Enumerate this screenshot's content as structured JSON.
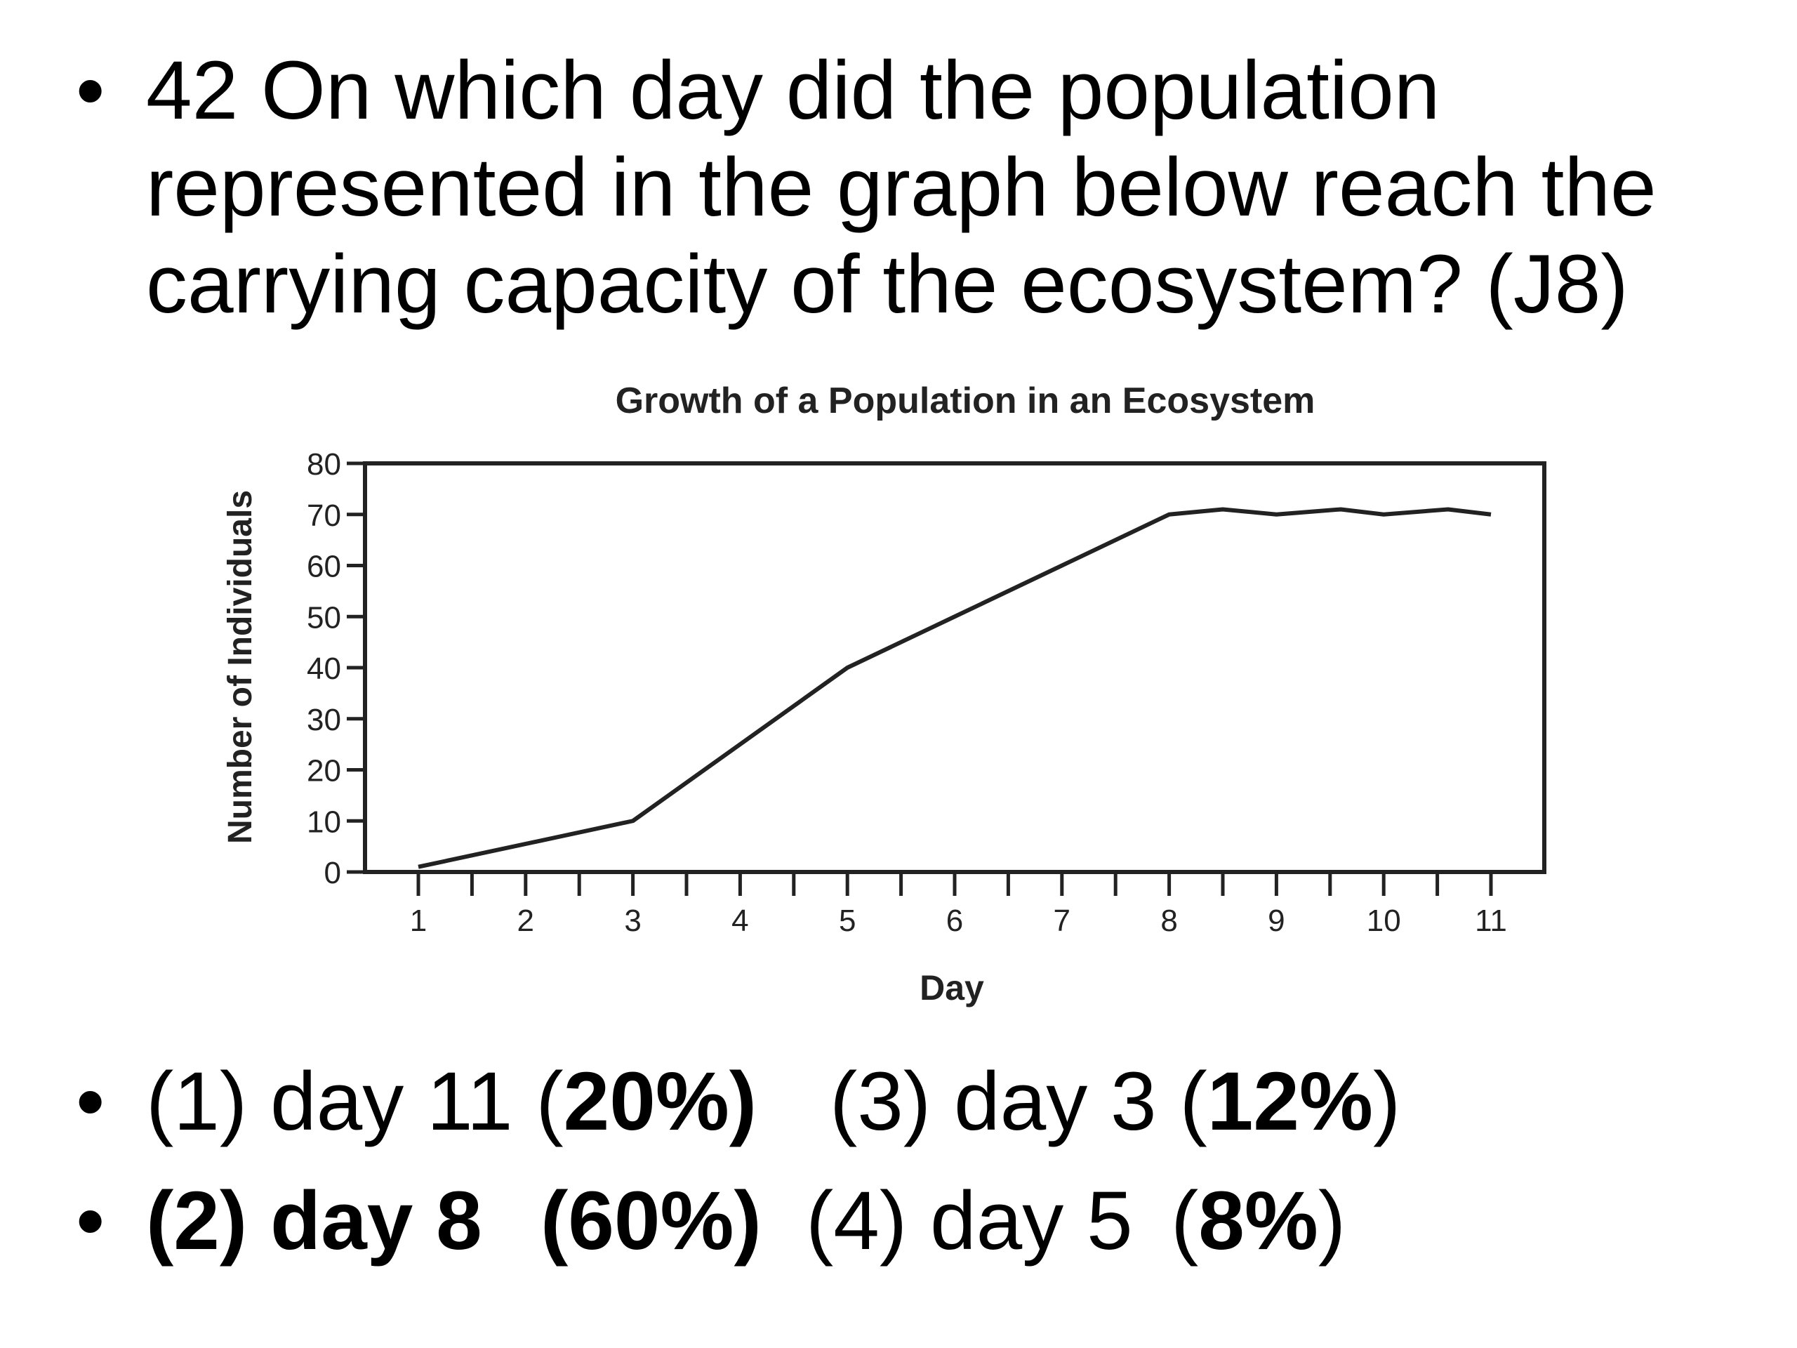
{
  "question": {
    "bullet": "•",
    "lines": [
      "42 On which day did the population",
      "represented in the graph below reach the",
      "carrying capacity of the ecosystem? (J8)"
    ]
  },
  "answers": {
    "row1": {
      "bullet": "•",
      "opt1_text": "(1) day 11 (",
      "opt1_pct": "20%",
      "opt1_close": ")",
      "opt3_text": "(3) day 3 (",
      "opt3_pct": "12%",
      "opt3_close": ")"
    },
    "row2": {
      "bullet": "•",
      "opt2_text": "(2) day 8",
      "opt2_pct_full": "(60%)",
      "opt4_text": "(4) day 5",
      "opt4_open": "(",
      "opt4_pct": "8%",
      "opt4_close": ")"
    }
  },
  "chart_data": {
    "type": "line",
    "title": "Growth of a Population in an Ecosystem",
    "xlabel": "Day",
    "ylabel": "Number of Individuals",
    "x_ticks": [
      "1",
      "2",
      "3",
      "4",
      "5",
      "6",
      "7",
      "8",
      "9",
      "10",
      "11"
    ],
    "y_ticks": [
      "0",
      "10",
      "20",
      "30",
      "40",
      "50",
      "60",
      "70",
      "80"
    ],
    "xlim": [
      0.5,
      11.5
    ],
    "ylim": [
      0,
      80
    ],
    "grid": false,
    "series": [
      {
        "x": [
          1,
          3,
          5,
          6,
          7,
          8,
          8.5,
          9,
          9.6,
          10,
          10.6,
          11
        ],
        "y": [
          1,
          10,
          40,
          50,
          60,
          70,
          71,
          70,
          71,
          70,
          71,
          70
        ]
      }
    ]
  }
}
